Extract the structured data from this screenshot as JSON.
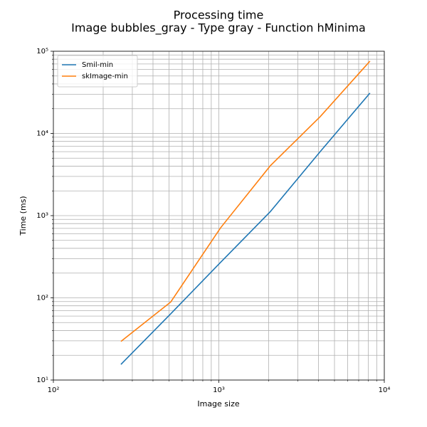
{
  "chart_data": {
    "type": "line",
    "title": "Processing time",
    "subtitle": "Image bubbles_gray - Type gray - Function hMinima",
    "x_label": "Image size",
    "y_label": "Time (ms)",
    "x": [
      256,
      512,
      1024,
      2048,
      4096,
      8192
    ],
    "series": [
      {
        "name": "Smil-min",
        "color": "#1f77b4",
        "values": [
          15.5,
          64,
          270,
          1120,
          6000,
          31000
        ]
      },
      {
        "name": "skImage-min",
        "color": "#ff7f0e",
        "values": [
          29.5,
          89,
          710,
          4050,
          16000,
          75800
        ]
      }
    ],
    "xscale": "log",
    "yscale": "log",
    "xlim": [
      100,
      10000
    ],
    "ylim": [
      10,
      100000
    ],
    "xticks": [
      {
        "value": 100,
        "label": "10²"
      },
      {
        "value": 1000,
        "label": "10³"
      },
      {
        "value": 10000,
        "label": "10⁴"
      }
    ],
    "yticks": [
      {
        "value": 10,
        "label": "10¹"
      },
      {
        "value": 100,
        "label": "10²"
      },
      {
        "value": 1000,
        "label": "10³"
      },
      {
        "value": 10000,
        "label": "10⁴"
      },
      {
        "value": 100000,
        "label": "10⁵"
      }
    ],
    "xminorticks": [
      200,
      300,
      400,
      500,
      600,
      700,
      800,
      900,
      2000,
      3000,
      4000,
      5000,
      6000,
      7000,
      8000,
      9000
    ],
    "yminorticks": [
      20,
      30,
      40,
      50,
      60,
      70,
      80,
      90,
      200,
      300,
      400,
      500,
      600,
      700,
      800,
      900,
      2000,
      3000,
      4000,
      5000,
      6000,
      7000,
      8000,
      9000,
      20000,
      30000,
      40000,
      50000,
      60000,
      70000,
      80000,
      90000
    ],
    "grid": true,
    "legend": "upper left"
  }
}
